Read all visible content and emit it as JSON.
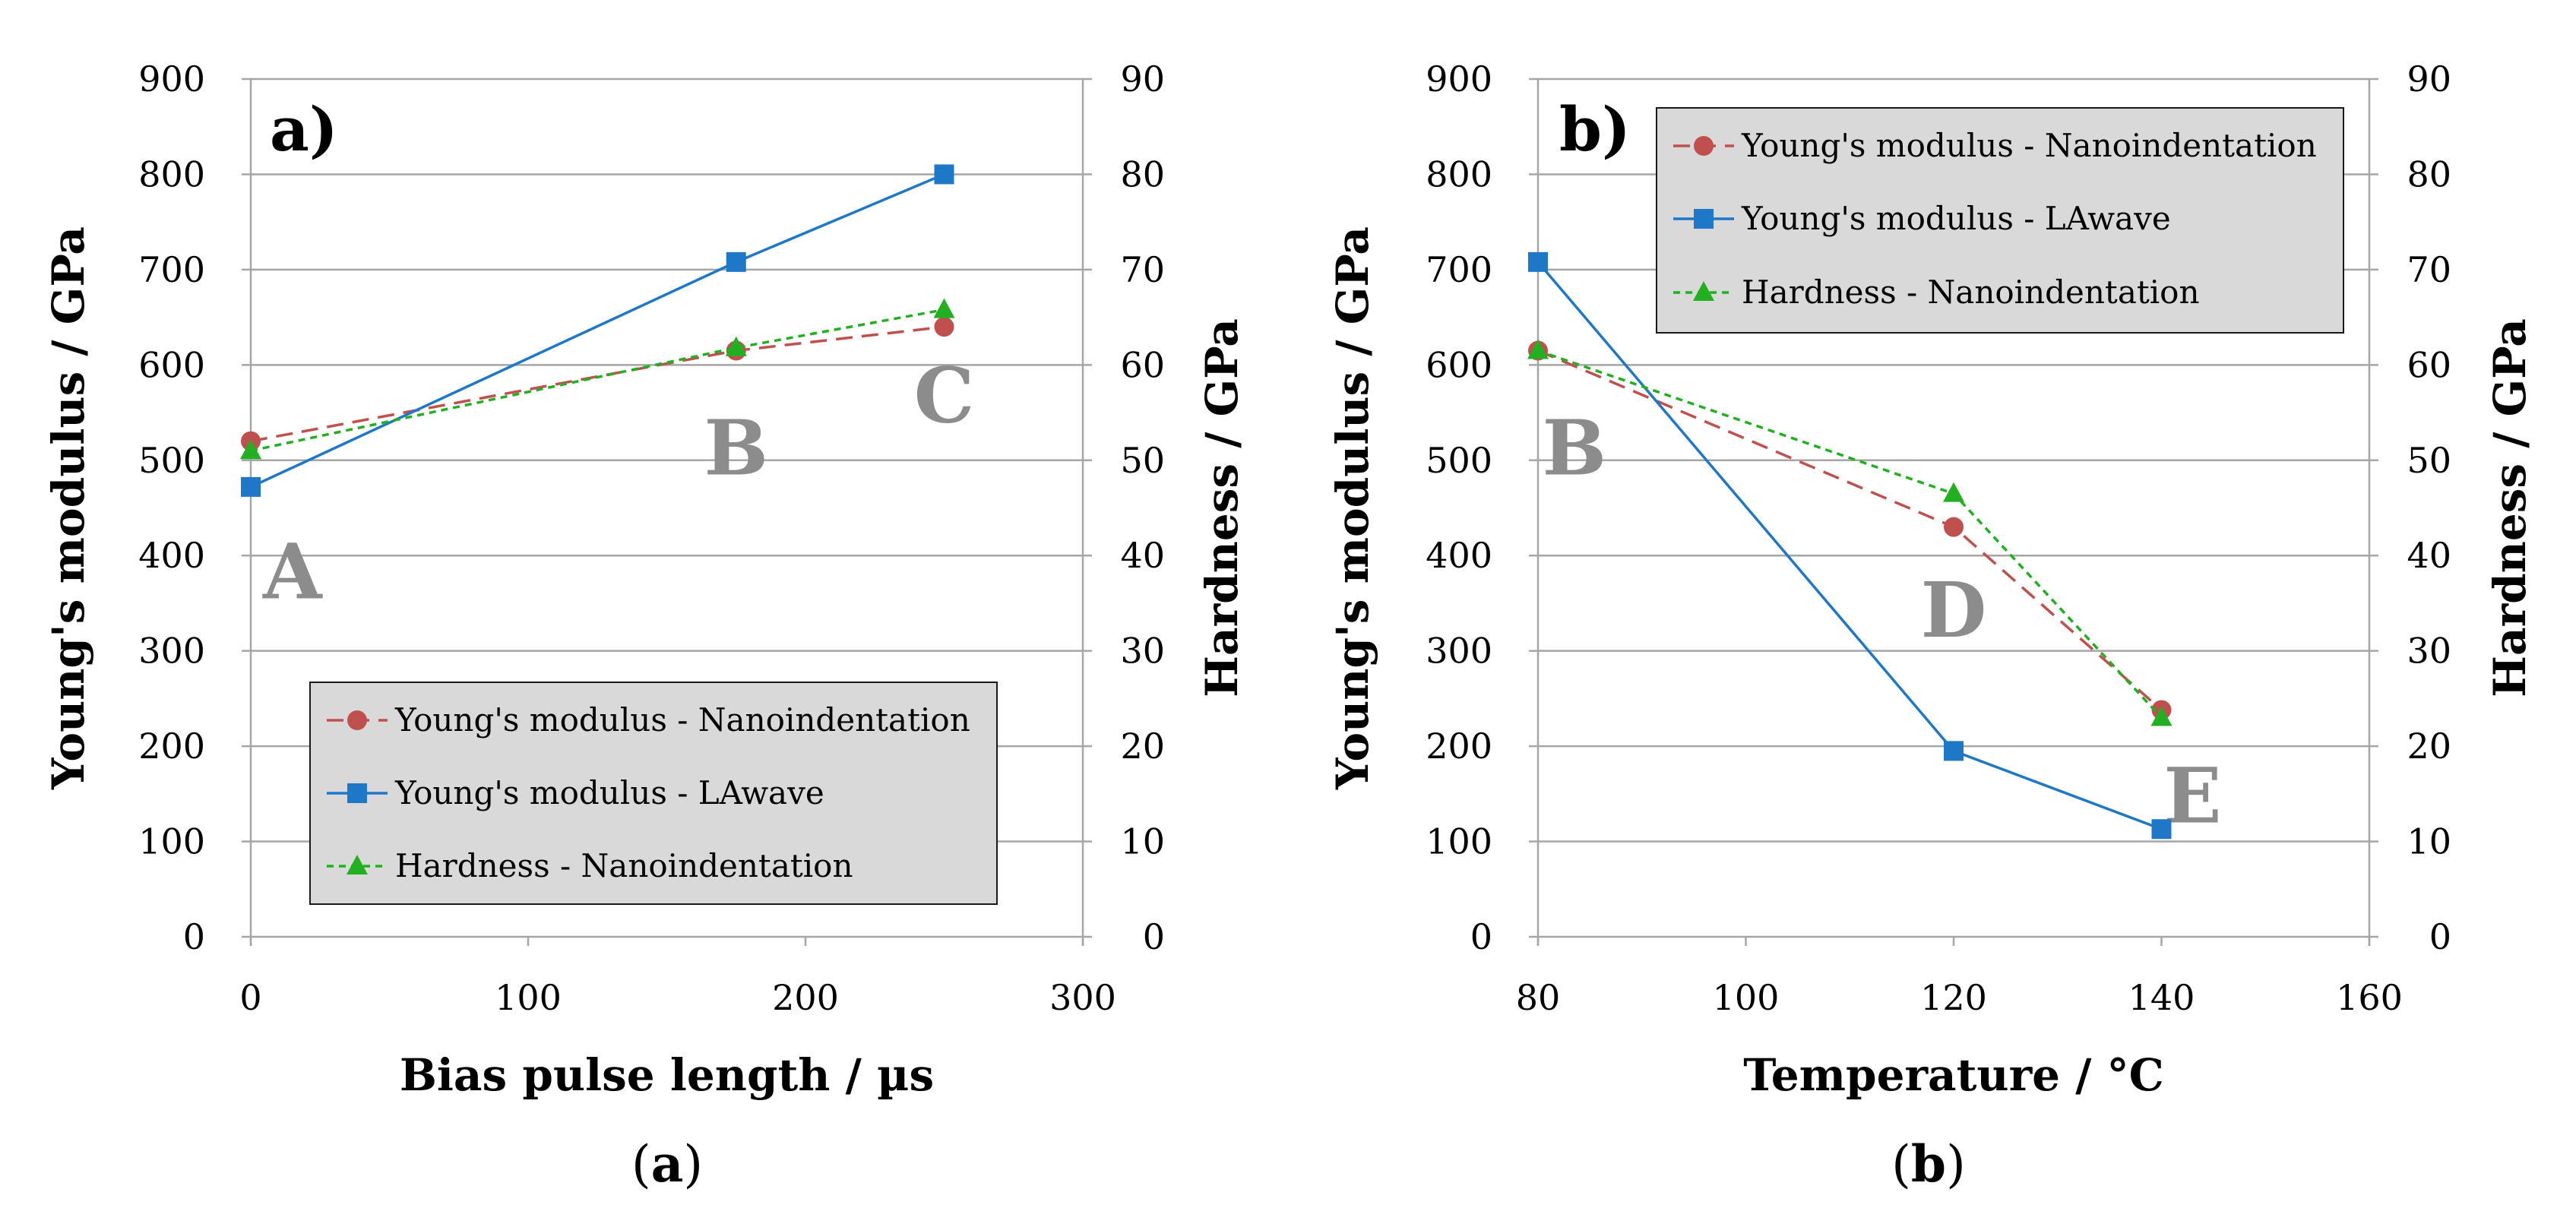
{
  "chart_data": [
    {
      "type": "line",
      "panel_label": "a)",
      "caption_open": "(",
      "caption_letter": "a",
      "caption_close": ")",
      "xlabel": "Bias pulse length / µs",
      "ylabel": "Young's modulus / GPa",
      "y2label": "Hardness / GPa",
      "xlim": [
        0,
        300
      ],
      "xticks": [
        0,
        100,
        200,
        300
      ],
      "ylim": [
        0,
        900
      ],
      "yticks": [
        0,
        100,
        200,
        300,
        400,
        500,
        600,
        700,
        800,
        900
      ],
      "y2lim": [
        0,
        90
      ],
      "y2ticks": [
        0,
        10,
        20,
        30,
        40,
        50,
        60,
        70,
        80,
        90
      ],
      "grid": true,
      "legend_position": "bottom-right",
      "series": [
        {
          "name": "Young's modulus - Nanoindentation",
          "axis": "left",
          "color": "#c0504d",
          "marker": "circle",
          "dash": "dashed",
          "x": [
            0,
            175,
            250
          ],
          "y": [
            520,
            615,
            640
          ]
        },
        {
          "name": "Young's modulus - LAwave",
          "axis": "left",
          "color": "#1f77c8",
          "marker": "square",
          "dash": "solid",
          "x": [
            0,
            175,
            250
          ],
          "y": [
            472,
            708,
            800
          ]
        },
        {
          "name": "Hardness - Nanoindentation",
          "axis": "right",
          "color": "#22b022",
          "marker": "triangle",
          "dash": "dotted",
          "x": [
            0,
            175,
            250
          ],
          "y": [
            51,
            61.8,
            65.8
          ]
        }
      ],
      "annotations": [
        {
          "text": "A",
          "x": 15,
          "y": 355
        },
        {
          "text": "B",
          "x": 175,
          "y": 485
        },
        {
          "text": "C",
          "x": 250,
          "y": 540
        }
      ]
    },
    {
      "type": "line",
      "panel_label": "b)",
      "caption_open": "(",
      "caption_letter": "b",
      "caption_close": ")",
      "xlabel": "Temperature / °C",
      "ylabel": "Young's modulus / GPa",
      "y2label": "Hardness / GPa",
      "xlim": [
        80,
        160
      ],
      "xticks": [
        80,
        100,
        120,
        140,
        160
      ],
      "ylim": [
        0,
        900
      ],
      "yticks": [
        0,
        100,
        200,
        300,
        400,
        500,
        600,
        700,
        800,
        900
      ],
      "y2lim": [
        0,
        90
      ],
      "y2ticks": [
        0,
        10,
        20,
        30,
        40,
        50,
        60,
        70,
        80,
        90
      ],
      "grid": true,
      "legend_position": "top-right",
      "series": [
        {
          "name": "Young's modulus - Nanoindentation",
          "axis": "left",
          "color": "#c0504d",
          "marker": "circle",
          "dash": "dashed",
          "x": [
            80,
            120,
            140
          ],
          "y": [
            615,
            430,
            238
          ]
        },
        {
          "name": "Young's modulus - LAwave",
          "axis": "left",
          "color": "#1f77c8",
          "marker": "square",
          "dash": "solid",
          "x": [
            80,
            120,
            140
          ],
          "y": [
            708,
            195,
            113
          ]
        },
        {
          "name": "Hardness - Nanoindentation",
          "axis": "right",
          "color": "#22b022",
          "marker": "triangle",
          "dash": "dotted",
          "x": [
            80,
            120,
            140
          ],
          "y": [
            61.5,
            46.5,
            23
          ]
        }
      ],
      "annotations": [
        {
          "text": "B",
          "x": 83.5,
          "y": 485
        },
        {
          "text": "D",
          "x": 120,
          "y": 315
        },
        {
          "text": "E",
          "x": 143,
          "y": 120
        }
      ]
    }
  ]
}
